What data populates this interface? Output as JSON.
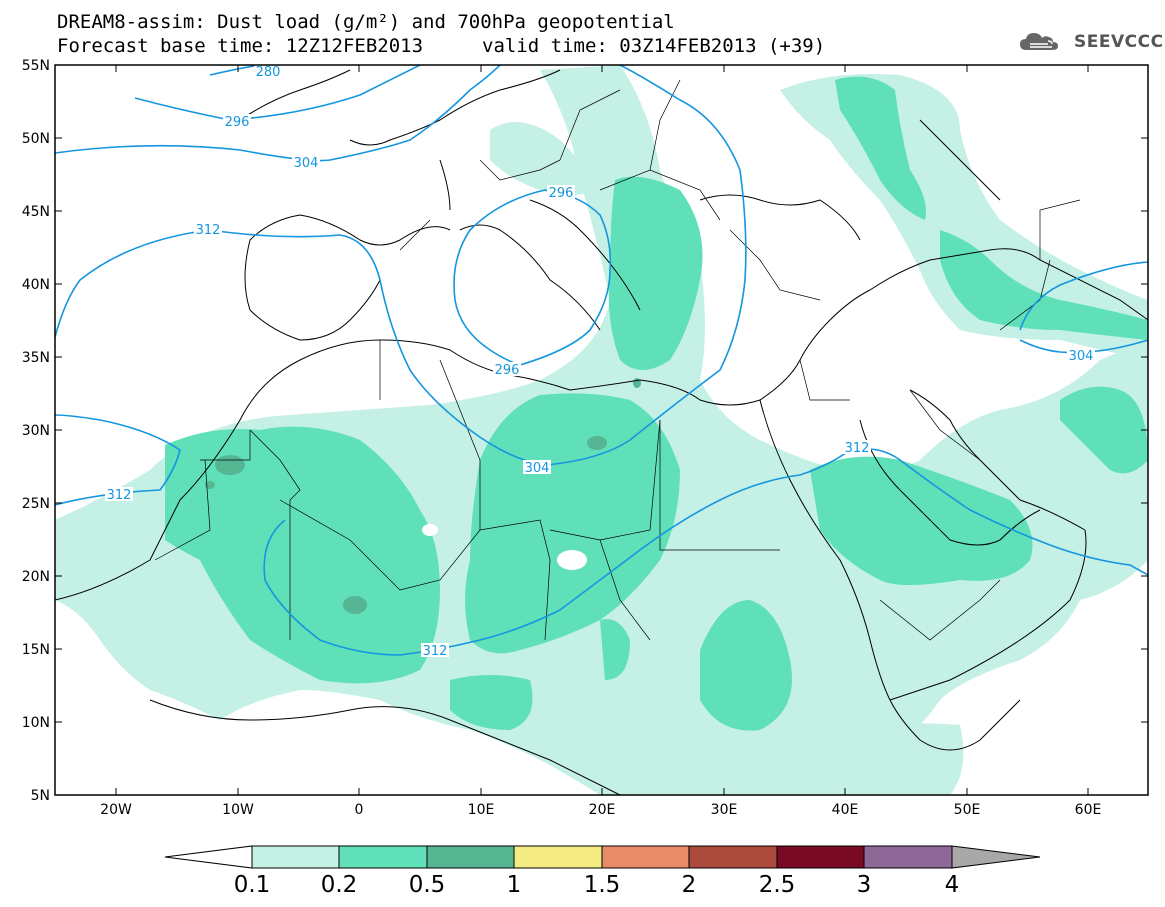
{
  "header": {
    "line1": "DREAM8-assim: Dust load (g/m²) and 700hPa geopotential",
    "line2": "Forecast base time: 12Z12FEB2013",
    "valid": "valid time: 03Z14FEB2013 (+39)"
  },
  "logo": {
    "text": "SEEVCCC",
    "icon": "cloud-logo-icon"
  },
  "axes": {
    "lat_labels": [
      "55N",
      "50N",
      "45N",
      "40N",
      "35N",
      "30N",
      "25N",
      "20N",
      "15N",
      "10N",
      "5N"
    ],
    "lon_labels": [
      "20W",
      "10W",
      "0",
      "10E",
      "20E",
      "30E",
      "40E",
      "50E",
      "60E"
    ]
  },
  "contour_labels": [
    "280",
    "296",
    "304",
    "312",
    "296",
    "296",
    "304",
    "312",
    "312",
    "304",
    "312"
  ],
  "colorbar": {
    "labels": [
      "0.1",
      "0.2",
      "0.5",
      "1",
      "1.5",
      "2",
      "2.5",
      "3",
      "4"
    ],
    "colors": [
      "#c4f0e6",
      "#5fe0b8",
      "#56b693",
      "#f4ec82",
      "#e88c68",
      "#ad4a3e",
      "#7a0a24",
      "#8e6896",
      "#a8a8a8"
    ]
  },
  "fill_colors": {
    "level1": "#c4f0e6",
    "level2": "#5fe0b8",
    "level3": "#56b693"
  },
  "contour_color": "#1596e0"
}
